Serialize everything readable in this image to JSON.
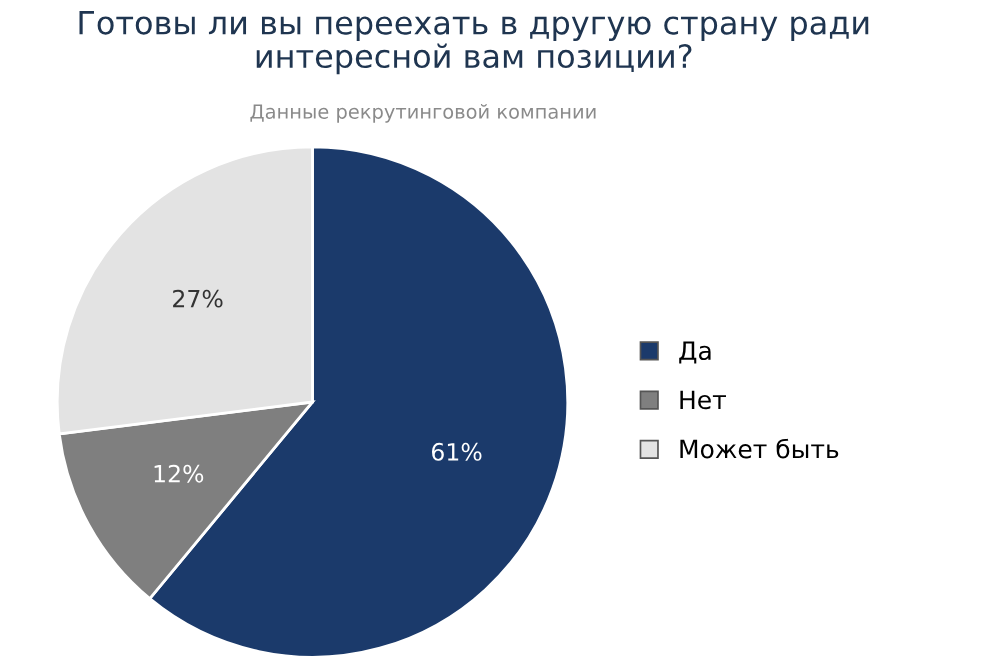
{
  "chart_data": {
    "type": "pie",
    "title": "Готовы ли вы переехать в другую страну ради\nинтересной вам позиции?",
    "subtitle": "Данные рекрутинговой компании",
    "categories": [
      "Да",
      "Нет",
      "Может быть"
    ],
    "values": [
      61,
      12,
      27
    ],
    "colors": [
      "#1b3a6b",
      "#7f7f7f",
      "#e3e3e3"
    ],
    "value_labels": [
      "61%",
      "12%",
      "27%"
    ],
    "legend": "right"
  }
}
